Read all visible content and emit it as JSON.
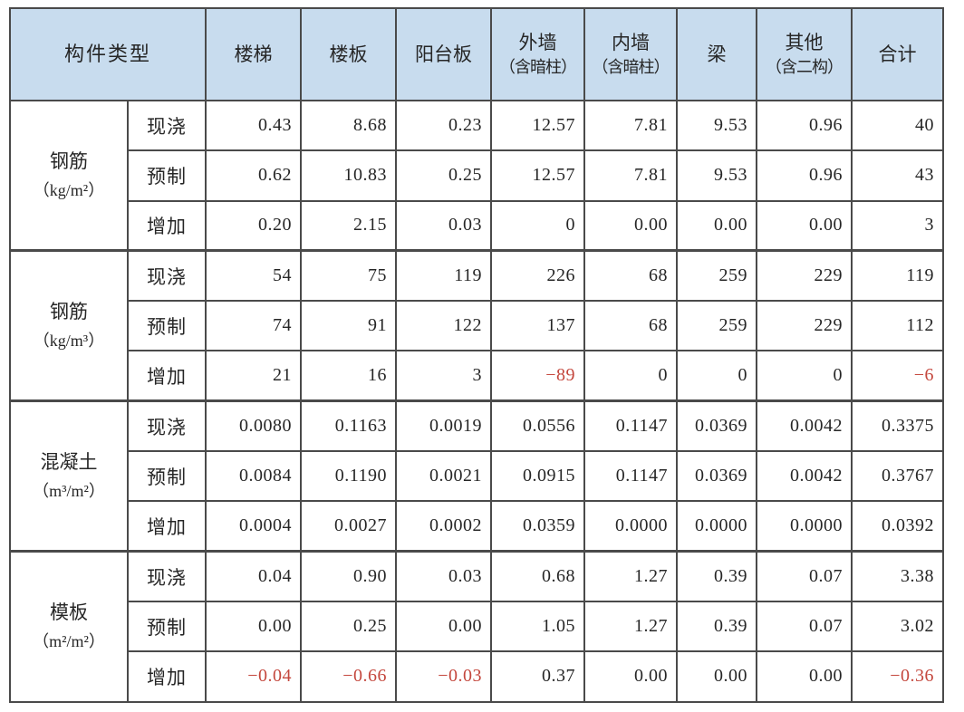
{
  "colors": {
    "header_bg": "#c8dcee",
    "border": "#4a4a4a",
    "text": "#262626",
    "negative": "#c4473d"
  },
  "table": {
    "corner_header": "构件类型",
    "columns": [
      {
        "title": "楼梯",
        "sub": ""
      },
      {
        "title": "楼板",
        "sub": ""
      },
      {
        "title": "阳台板",
        "sub": ""
      },
      {
        "title": "外墙",
        "sub": "（含暗柱）"
      },
      {
        "title": "内墙",
        "sub": "（含暗柱）"
      },
      {
        "title": "梁",
        "sub": ""
      },
      {
        "title": "其他",
        "sub": "（含二构）"
      },
      {
        "title": "合计",
        "sub": ""
      }
    ],
    "groups": [
      {
        "name": "钢筋",
        "unit": "（kg/m²）",
        "rows": [
          {
            "label": "现浇",
            "values": [
              "0.43",
              "8.68",
              "0.23",
              "12.57",
              "7.81",
              "9.53",
              "0.96",
              "40"
            ]
          },
          {
            "label": "预制",
            "values": [
              "0.62",
              "10.83",
              "0.25",
              "12.57",
              "7.81",
              "9.53",
              "0.96",
              "43"
            ]
          },
          {
            "label": "增加",
            "values": [
              "0.20",
              "2.15",
              "0.03",
              "0",
              "0.00",
              "0.00",
              "0.00",
              "3"
            ]
          }
        ]
      },
      {
        "name": "钢筋",
        "unit": "（kg/m³）",
        "rows": [
          {
            "label": "现浇",
            "values": [
              "54",
              "75",
              "119",
              "226",
              "68",
              "259",
              "229",
              "119"
            ]
          },
          {
            "label": "预制",
            "values": [
              "74",
              "91",
              "122",
              "137",
              "68",
              "259",
              "229",
              "112"
            ]
          },
          {
            "label": "增加",
            "values": [
              "21",
              "16",
              "3",
              "−89",
              "0",
              "0",
              "0",
              "−6"
            ]
          }
        ]
      },
      {
        "name": "混凝土",
        "unit": "（m³/m²）",
        "rows": [
          {
            "label": "现浇",
            "values": [
              "0.0080",
              "0.1163",
              "0.0019",
              "0.0556",
              "0.1147",
              "0.0369",
              "0.0042",
              "0.3375"
            ]
          },
          {
            "label": "预制",
            "values": [
              "0.0084",
              "0.1190",
              "0.0021",
              "0.0915",
              "0.1147",
              "0.0369",
              "0.0042",
              "0.3767"
            ]
          },
          {
            "label": "增加",
            "values": [
              "0.0004",
              "0.0027",
              "0.0002",
              "0.0359",
              "0.0000",
              "0.0000",
              "0.0000",
              "0.0392"
            ]
          }
        ]
      },
      {
        "name": "模板",
        "unit": "（m²/m²）",
        "rows": [
          {
            "label": "现浇",
            "values": [
              "0.04",
              "0.90",
              "0.03",
              "0.68",
              "1.27",
              "0.39",
              "0.07",
              "3.38"
            ]
          },
          {
            "label": "预制",
            "values": [
              "0.00",
              "0.25",
              "0.00",
              "1.05",
              "1.27",
              "0.39",
              "0.07",
              "3.02"
            ]
          },
          {
            "label": "增加",
            "values": [
              "−0.04",
              "−0.66",
              "−0.03",
              "0.37",
              "0.00",
              "0.00",
              "0.00",
              "−0.36"
            ]
          }
        ]
      }
    ]
  }
}
